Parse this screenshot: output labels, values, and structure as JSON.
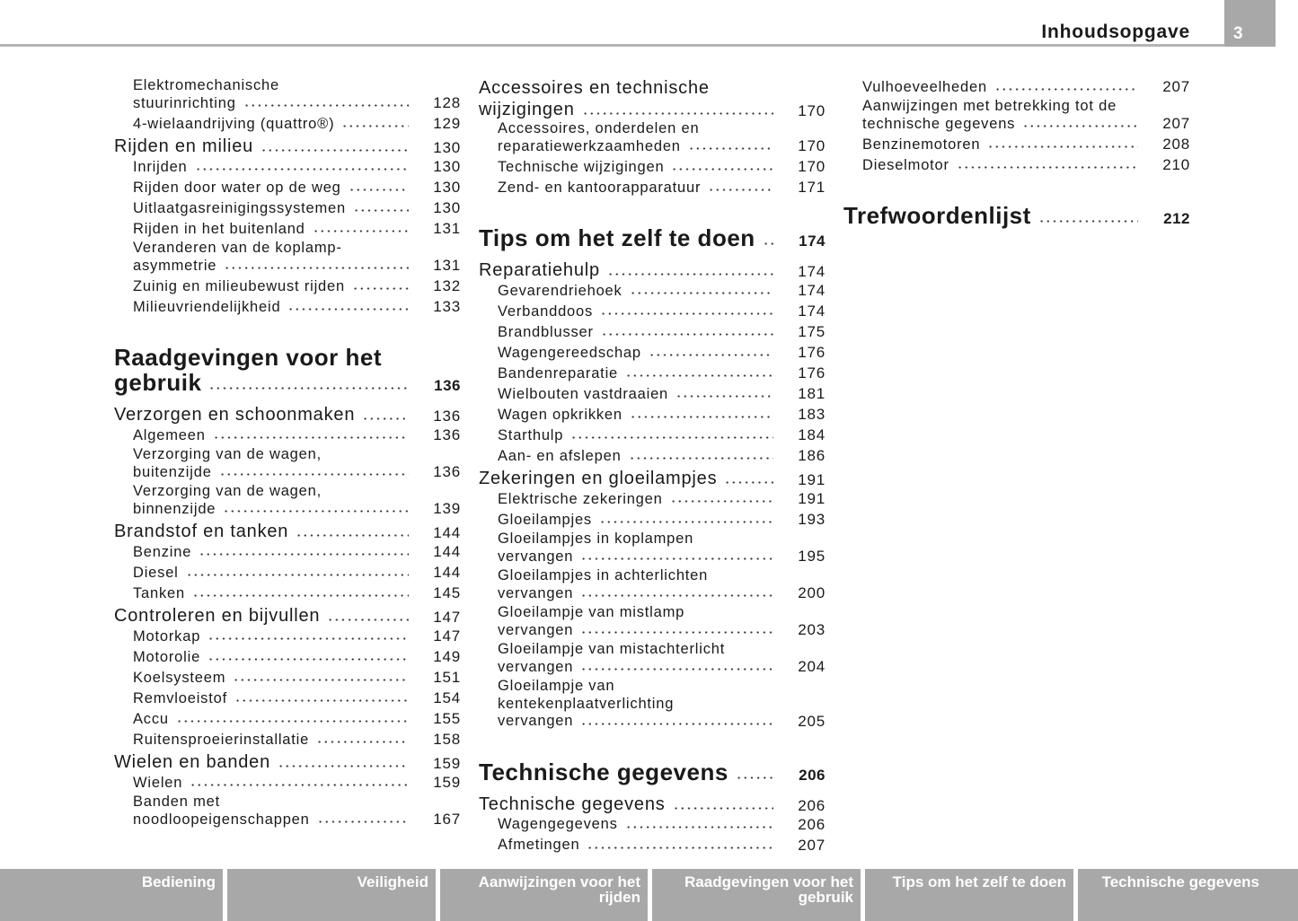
{
  "header": {
    "title": "Inhoudsopgave",
    "page": "3"
  },
  "columns": [
    {
      "entries": [
        {
          "level": "item",
          "lines": [
            "Elektromechanische",
            "stuurinrichting"
          ],
          "page": "128"
        },
        {
          "level": "item",
          "lines": [
            "4-wielaandrijving (quattro®)"
          ],
          "page": "129"
        },
        {
          "level": "chapter",
          "lines": [
            "Rijden en milieu"
          ],
          "page": "130"
        },
        {
          "level": "item",
          "lines": [
            "Inrijden"
          ],
          "page": "130"
        },
        {
          "level": "item",
          "lines": [
            "Rijden door water op de weg"
          ],
          "page": "130"
        },
        {
          "level": "item",
          "lines": [
            "Uitlaatgasreinigingssystemen"
          ],
          "page": "130"
        },
        {
          "level": "item",
          "lines": [
            "Rijden in het buitenland"
          ],
          "page": "131"
        },
        {
          "level": "item",
          "lines": [
            "Veranderen van de koplamp-",
            "asymmetrie"
          ],
          "page": "131"
        },
        {
          "level": "item",
          "lines": [
            "Zuinig en milieubewust rijden"
          ],
          "page": "132"
        },
        {
          "level": "item",
          "lines": [
            "Milieuvriendelijkheid"
          ],
          "page": "133"
        },
        {
          "level": "section",
          "lines": [
            "Raadgevingen voor het",
            "gebruik"
          ],
          "page": "136"
        },
        {
          "level": "chapter",
          "lines": [
            "Verzorgen en schoonmaken"
          ],
          "page": "136"
        },
        {
          "level": "item",
          "lines": [
            "Algemeen"
          ],
          "page": "136"
        },
        {
          "level": "item",
          "lines": [
            "Verzorging van de wagen,",
            "buitenzijde"
          ],
          "page": "136"
        },
        {
          "level": "item",
          "lines": [
            "Verzorging van de wagen,",
            "binnenzijde"
          ],
          "page": "139"
        },
        {
          "level": "chapter",
          "lines": [
            "Brandstof en tanken"
          ],
          "page": "144"
        },
        {
          "level": "item",
          "lines": [
            "Benzine"
          ],
          "page": "144"
        },
        {
          "level": "item",
          "lines": [
            "Diesel"
          ],
          "page": "144"
        },
        {
          "level": "item",
          "lines": [
            "Tanken"
          ],
          "page": "145"
        },
        {
          "level": "chapter",
          "lines": [
            "Controleren en bijvullen"
          ],
          "page": "147"
        },
        {
          "level": "item",
          "lines": [
            "Motorkap"
          ],
          "page": "147"
        },
        {
          "level": "item",
          "lines": [
            "Motorolie"
          ],
          "page": "149"
        },
        {
          "level": "item",
          "lines": [
            "Koelsysteem"
          ],
          "page": "151"
        },
        {
          "level": "item",
          "lines": [
            "Remvloeistof"
          ],
          "page": "154"
        },
        {
          "level": "item",
          "lines": [
            "Accu"
          ],
          "page": "155"
        },
        {
          "level": "item",
          "lines": [
            "Ruitensproeierinstallatie"
          ],
          "page": "158"
        },
        {
          "level": "chapter",
          "lines": [
            "Wielen en banden"
          ],
          "page": "159"
        },
        {
          "level": "item",
          "lines": [
            "Wielen"
          ],
          "page": "159"
        },
        {
          "level": "item",
          "lines": [
            "Banden met",
            "noodloopeigenschappen"
          ],
          "page": "167"
        }
      ]
    },
    {
      "entries": [
        {
          "level": "chapter",
          "lines": [
            "Accessoires en technische",
            "wijzigingen"
          ],
          "page": "170"
        },
        {
          "level": "item",
          "lines": [
            "Accessoires, onderdelen en",
            "reparatiewerkzaamheden"
          ],
          "page": "170"
        },
        {
          "level": "item",
          "lines": [
            "Technische wijzigingen"
          ],
          "page": "170"
        },
        {
          "level": "item",
          "lines": [
            "Zend- en kantoorapparatuur"
          ],
          "page": "171"
        },
        {
          "level": "section",
          "lines": [
            "Tips om het zelf te doen"
          ],
          "page": "174"
        },
        {
          "level": "chapter",
          "lines": [
            "Reparatiehulp"
          ],
          "page": "174"
        },
        {
          "level": "item",
          "lines": [
            "Gevarendriehoek"
          ],
          "page": "174"
        },
        {
          "level": "item",
          "lines": [
            "Verbanddoos"
          ],
          "page": "174"
        },
        {
          "level": "item",
          "lines": [
            "Brandblusser"
          ],
          "page": "175"
        },
        {
          "level": "item",
          "lines": [
            "Wagengereedschap"
          ],
          "page": "176"
        },
        {
          "level": "item",
          "lines": [
            "Bandenreparatie"
          ],
          "page": "176"
        },
        {
          "level": "item",
          "lines": [
            "Wielbouten vastdraaien"
          ],
          "page": "181"
        },
        {
          "level": "item",
          "lines": [
            "Wagen opkrikken"
          ],
          "page": "183"
        },
        {
          "level": "item",
          "lines": [
            "Starthulp"
          ],
          "page": "184"
        },
        {
          "level": "item",
          "lines": [
            "Aan- en afslepen"
          ],
          "page": "186"
        },
        {
          "level": "chapter",
          "lines": [
            "Zekeringen en gloeilampjes"
          ],
          "page": "191"
        },
        {
          "level": "item",
          "lines": [
            "Elektrische zekeringen"
          ],
          "page": "191"
        },
        {
          "level": "item",
          "lines": [
            "Gloeilampjes"
          ],
          "page": "193"
        },
        {
          "level": "item",
          "lines": [
            "Gloeilampjes in koplampen",
            "vervangen"
          ],
          "page": "195"
        },
        {
          "level": "item",
          "lines": [
            "Gloeilampjes in achterlichten",
            "vervangen"
          ],
          "page": "200"
        },
        {
          "level": "item",
          "lines": [
            "Gloeilampje van mistlamp",
            "vervangen"
          ],
          "page": "203"
        },
        {
          "level": "item",
          "lines": [
            "Gloeilampje van mistachterlicht",
            "vervangen"
          ],
          "page": "204"
        },
        {
          "level": "item",
          "lines": [
            "Gloeilampje van",
            "kentekenplaatverlichting",
            "vervangen"
          ],
          "page": "205"
        },
        {
          "level": "section",
          "lines": [
            "Technische gegevens"
          ],
          "page": "206"
        },
        {
          "level": "chapter",
          "lines": [
            "Technische gegevens"
          ],
          "page": "206"
        },
        {
          "level": "item",
          "lines": [
            "Wagengegevens"
          ],
          "page": "206"
        },
        {
          "level": "item",
          "lines": [
            "Afmetingen"
          ],
          "page": "207"
        }
      ]
    },
    {
      "entries": [
        {
          "level": "item",
          "lines": [
            "Vulhoeveelheden"
          ],
          "page": "207"
        },
        {
          "level": "item",
          "lines": [
            "Aanwijzingen met betrekking tot de",
            "technische gegevens"
          ],
          "page": "207"
        },
        {
          "level": "item",
          "lines": [
            "Benzinemotoren"
          ],
          "page": "208"
        },
        {
          "level": "item",
          "lines": [
            "Dieselmotor"
          ],
          "page": "210"
        },
        {
          "level": "section",
          "lines": [
            "Trefwoordenlijst"
          ],
          "page": "212"
        }
      ]
    }
  ],
  "footer": {
    "tabs": [
      [
        "Bediening"
      ],
      [
        "Veiligheid"
      ],
      [
        "Aanwijzingen voor het",
        "rijden"
      ],
      [
        "Raadgevingen voor het",
        "gebruik"
      ],
      [
        "Tips om het zelf te doen"
      ],
      [
        "Technische gegevens"
      ]
    ]
  }
}
